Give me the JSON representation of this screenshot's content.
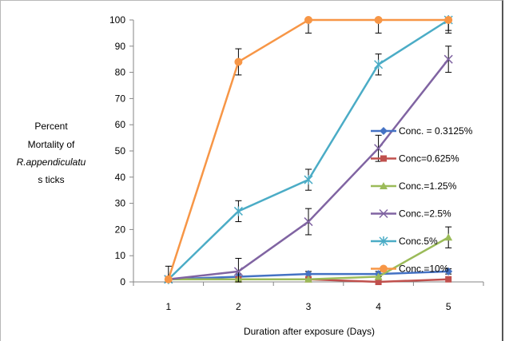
{
  "chart_data": {
    "type": "line",
    "title": "",
    "xlabel": "Duration after exposure (Days)",
    "ylabel_lines": [
      "Percent",
      "Mortality of",
      "R.appendiculatu",
      "s ticks"
    ],
    "x": [
      1,
      2,
      3,
      4,
      5
    ],
    "xticks": [
      "1",
      "2",
      "3",
      "4",
      "5"
    ],
    "ylim": [
      0,
      100
    ],
    "yticks": [
      "0",
      "10",
      "20",
      "30",
      "40",
      "50",
      "60",
      "70",
      "80",
      "90",
      "100"
    ],
    "grid": false,
    "legend_position": "right",
    "error_bars": true,
    "series": [
      {
        "name": "Conc. = 0.3125%",
        "color": "#4472C4",
        "marker": "diamond",
        "values": [
          1,
          2,
          3,
          3,
          4
        ],
        "errors": [
          1,
          1,
          1,
          1,
          1
        ]
      },
      {
        "name": "Conc=0.625%",
        "color": "#C0504D",
        "marker": "square",
        "values": [
          1,
          1,
          1,
          0,
          1
        ],
        "errors": [
          1,
          0,
          0,
          0,
          0
        ]
      },
      {
        "name": "Conc.=1.25%",
        "color": "#9BBB59",
        "marker": "triangle",
        "values": [
          1,
          1,
          1,
          2,
          17
        ],
        "errors": [
          0,
          0,
          0,
          0,
          4
        ]
      },
      {
        "name": "Conc.=2.5%",
        "color": "#8064A2",
        "marker": "x",
        "values": [
          1,
          4,
          23,
          51,
          85
        ],
        "errors": [
          0,
          5,
          5,
          5,
          5
        ]
      },
      {
        "name": "Conc.5%",
        "color": "#4BACC6",
        "marker": "star",
        "values": [
          1,
          27,
          39,
          83,
          100
        ],
        "errors": [
          0,
          4,
          4,
          4,
          4
        ]
      },
      {
        "name": "Conc.=10%",
        "color": "#F79646",
        "marker": "circle",
        "values": [
          1,
          84,
          100,
          100,
          100
        ],
        "errors": [
          5,
          5,
          5,
          5,
          5
        ]
      }
    ]
  }
}
